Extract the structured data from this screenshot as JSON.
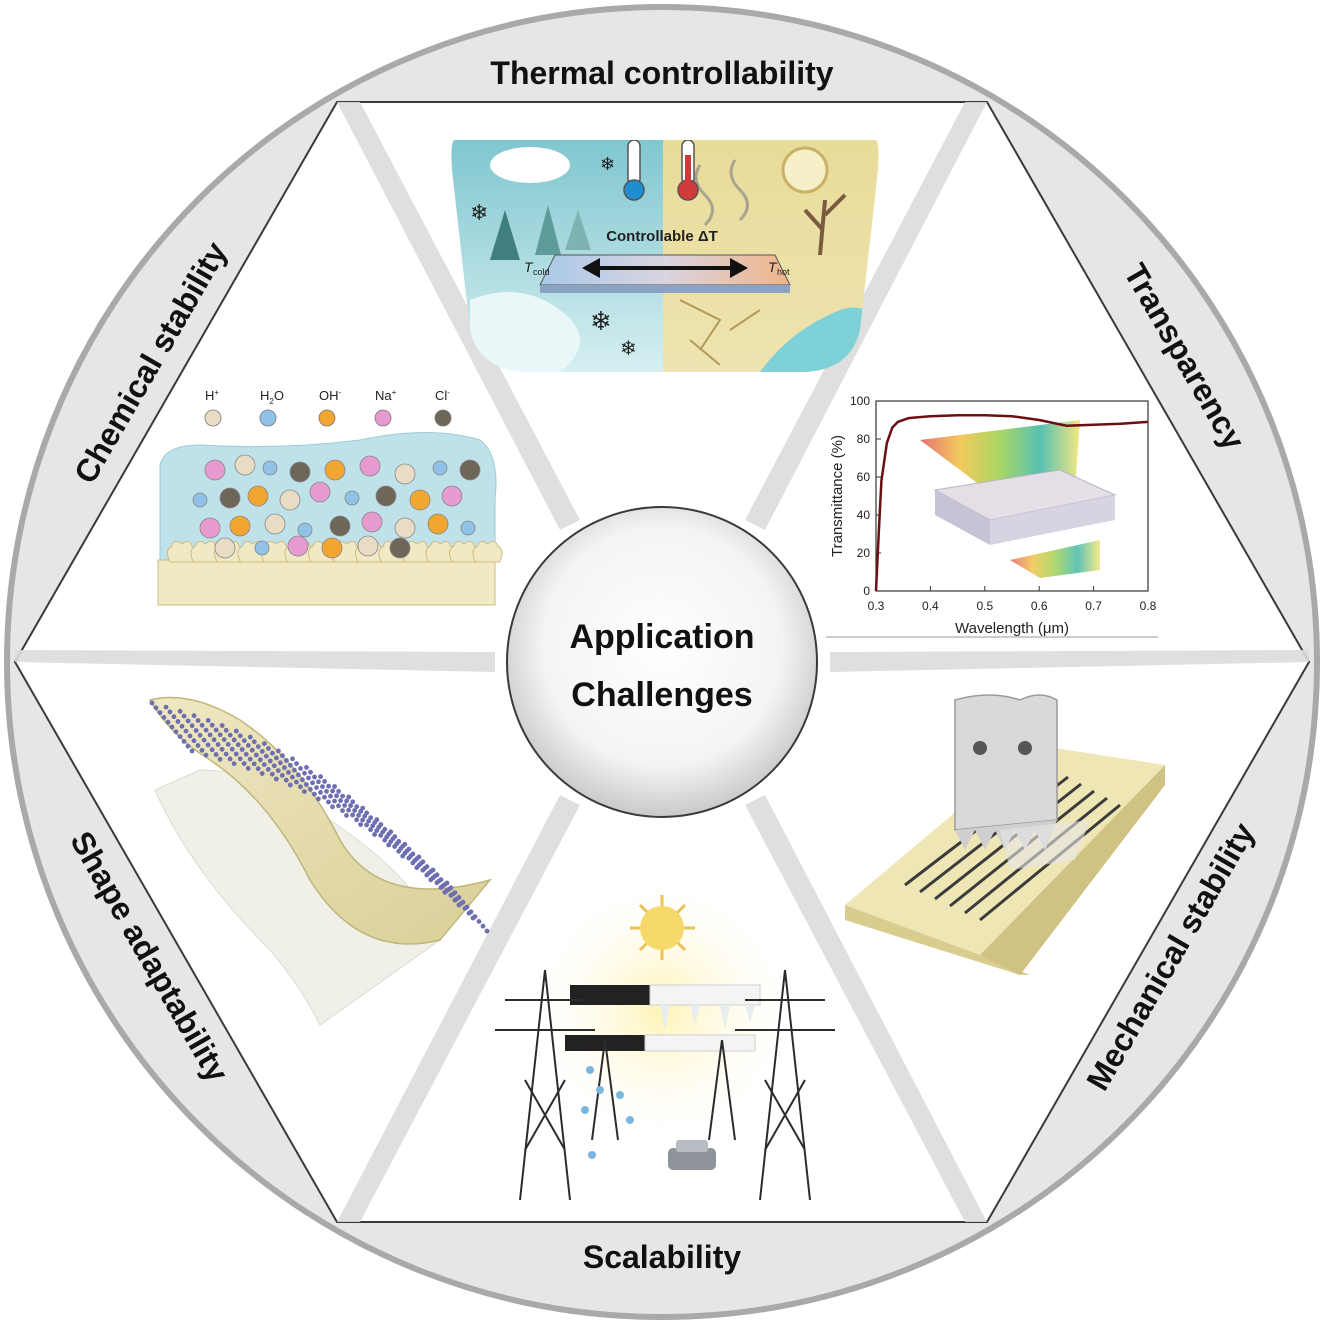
{
  "center": {
    "line1": "Application",
    "line2": "Challenges"
  },
  "labels": {
    "thermal": "Thermal controllability",
    "transparency": "Transparency",
    "mechanical": "Mechanical stability",
    "scalability": "Scalability",
    "shape": "Shape adaptability",
    "chemical": "Chemical stability"
  },
  "thermal_panel": {
    "caption": "Controllable ΔT",
    "t_cold": "T",
    "t_cold_sub": "cold",
    "t_hot": "T",
    "t_hot_sub": "hot"
  },
  "chemical_panel": {
    "species": [
      {
        "label": "H",
        "sup": "+",
        "color": "#e8dcc4"
      },
      {
        "label": "H",
        "sub": "2",
        "tail": "O",
        "color": "#8fc2e6"
      },
      {
        "label": "OH",
        "sup": "-",
        "color": "#f2a531"
      },
      {
        "label": "Na",
        "sup": "+",
        "color": "#e79ad0"
      },
      {
        "label": "Cl",
        "sup": "-",
        "color": "#6e6658"
      }
    ]
  },
  "chart_data": {
    "type": "line",
    "xlabel": "Wavelength (μm)",
    "ylabel": "Transmittance (%)",
    "xlim": [
      0.3,
      0.8
    ],
    "ylim": [
      0,
      100
    ],
    "xticks": [
      "0.3",
      "0.4",
      "0.5",
      "0.6",
      "0.7",
      "0.8"
    ],
    "yticks": [
      "0",
      "20",
      "40",
      "60",
      "80",
      "100"
    ],
    "series": [
      {
        "color": "#6b0f12",
        "x": [
          0.3,
          0.305,
          0.31,
          0.32,
          0.33,
          0.34,
          0.36,
          0.38,
          0.4,
          0.45,
          0.5,
          0.55,
          0.6,
          0.65,
          0.7,
          0.75,
          0.8
        ],
        "y": [
          0,
          30,
          58,
          78,
          86,
          89,
          91,
          91.5,
          92,
          92.5,
          92.5,
          92,
          90,
          87,
          87.5,
          88,
          89
        ]
      }
    ]
  }
}
